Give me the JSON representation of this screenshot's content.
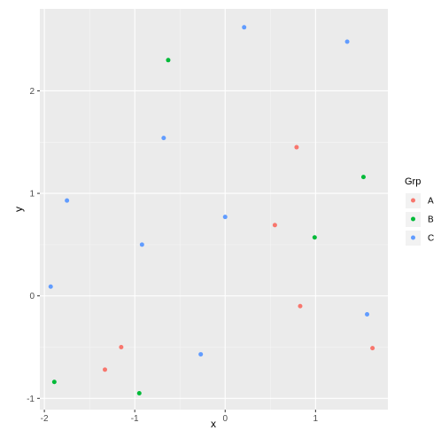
{
  "chart_data": {
    "type": "scatter",
    "xlabel": "x",
    "ylabel": "y",
    "xlim": [
      -2.05,
      1.8
    ],
    "ylim": [
      -1.11,
      2.8
    ],
    "x_ticks": [
      -2,
      -1,
      0,
      1
    ],
    "y_ticks": [
      -1,
      0,
      1,
      2
    ],
    "x_tick_labels": [
      "-2",
      "-1",
      "0",
      "1"
    ],
    "y_tick_labels": [
      "-1",
      "0",
      "1",
      "2"
    ],
    "grid": true,
    "legend": {
      "title": "Grp",
      "position": "right"
    },
    "series": [
      {
        "name": "A",
        "color": "#F8766D",
        "points": [
          {
            "x": -1.33,
            "y": -0.72
          },
          {
            "x": -1.15,
            "y": -0.5
          },
          {
            "x": 0.55,
            "y": 0.69
          },
          {
            "x": 0.79,
            "y": 1.45
          },
          {
            "x": 0.83,
            "y": -0.1
          },
          {
            "x": 1.63,
            "y": -0.51
          }
        ]
      },
      {
        "name": "B",
        "color": "#00BA38",
        "points": [
          {
            "x": -1.89,
            "y": -0.84
          },
          {
            "x": -0.95,
            "y": -0.95
          },
          {
            "x": -0.63,
            "y": 2.3
          },
          {
            "x": 0.99,
            "y": 0.57
          },
          {
            "x": 1.53,
            "y": 1.16
          }
        ]
      },
      {
        "name": "C",
        "color": "#619CFF",
        "points": [
          {
            "x": -1.93,
            "y": 0.09
          },
          {
            "x": -1.75,
            "y": 0.93
          },
          {
            "x": -0.92,
            "y": 0.5
          },
          {
            "x": -0.68,
            "y": 1.54
          },
          {
            "x": -0.27,
            "y": -0.57
          },
          {
            "x": 0.0,
            "y": 0.77
          },
          {
            "x": 0.21,
            "y": 2.62
          },
          {
            "x": 1.35,
            "y": 2.48
          },
          {
            "x": 1.57,
            "y": -0.18
          }
        ]
      }
    ]
  }
}
